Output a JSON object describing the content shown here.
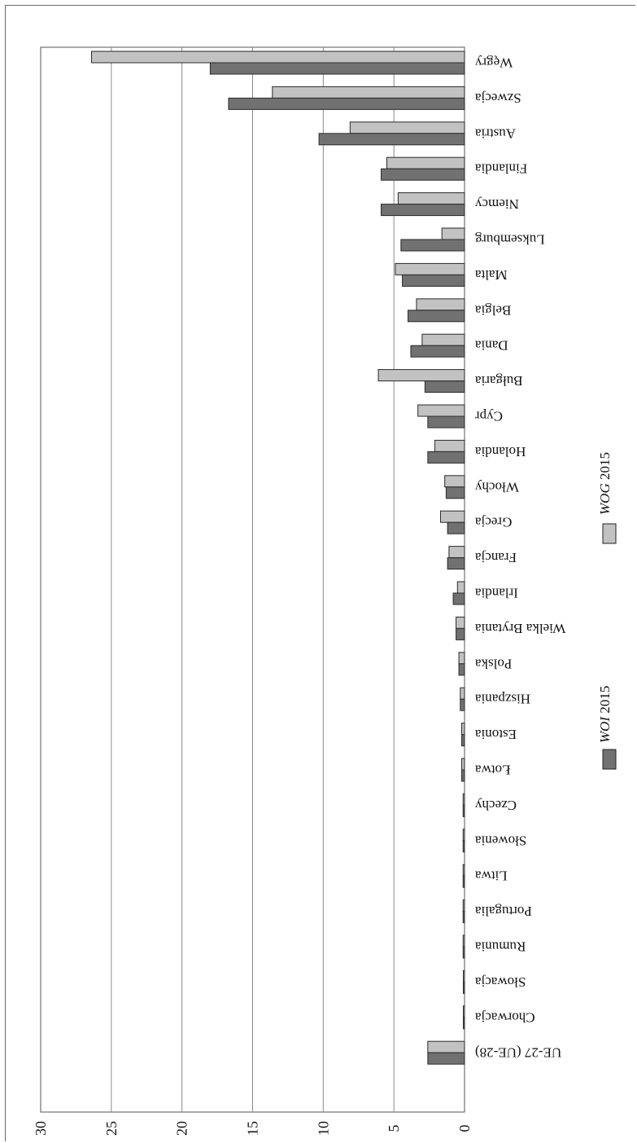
{
  "chart_data": {
    "type": "bar",
    "orientation": "horizontal, rotated 180°",
    "categories": [
      "Węgry",
      "Szwecja",
      "Austria",
      "Finlandia",
      "Niemcy",
      "Luksemburg",
      "Malta",
      "Belgia",
      "Dania",
      "Bułgaria",
      "Cypr",
      "Holandia",
      "Włochy",
      "Grecja",
      "Francja",
      "Irlandia",
      "Wielka Brytania",
      "Polska",
      "Hiszpania",
      "Estonia",
      "Łotwa",
      "Czechy",
      "Słowenia",
      "Litwa",
      "Portugalia",
      "Rumunia",
      "Słowacja",
      "Chorwacja",
      "UE-27 (UE-28)"
    ],
    "series": [
      {
        "name": "WOG 2015",
        "color": "#c2c2c2",
        "values": [
          26.4,
          13.6,
          8.1,
          5.5,
          4.7,
          1.6,
          4.9,
          3.4,
          3.0,
          6.1,
          3.3,
          2.1,
          1.4,
          1.7,
          1.1,
          0.5,
          0.6,
          0.4,
          0.3,
          0.2,
          0.2,
          0.1,
          0.1,
          0.1,
          0.1,
          0.1,
          0.05,
          0.05,
          2.6
        ]
      },
      {
        "name": "WOI 2015",
        "color": "#717171",
        "values": [
          18.0,
          16.7,
          10.3,
          5.9,
          5.9,
          4.5,
          4.4,
          4.0,
          3.8,
          2.8,
          2.6,
          2.6,
          1.3,
          1.2,
          1.2,
          0.8,
          0.6,
          0.4,
          0.3,
          0.2,
          0.2,
          0.1,
          0.1,
          0.1,
          0.1,
          0.1,
          0.05,
          0.05,
          2.6
        ]
      }
    ],
    "axis": {
      "ticks": [
        "0",
        "5",
        "10",
        "15",
        "20",
        "25",
        "30"
      ],
      "range": [
        0,
        30
      ]
    },
    "grid": true,
    "legend_position": "bottom-left"
  },
  "legend": {
    "woi_italic": "WOI",
    "woi_year": " 2015",
    "wog_italic": "WOG",
    "wog_year": " 2015"
  }
}
